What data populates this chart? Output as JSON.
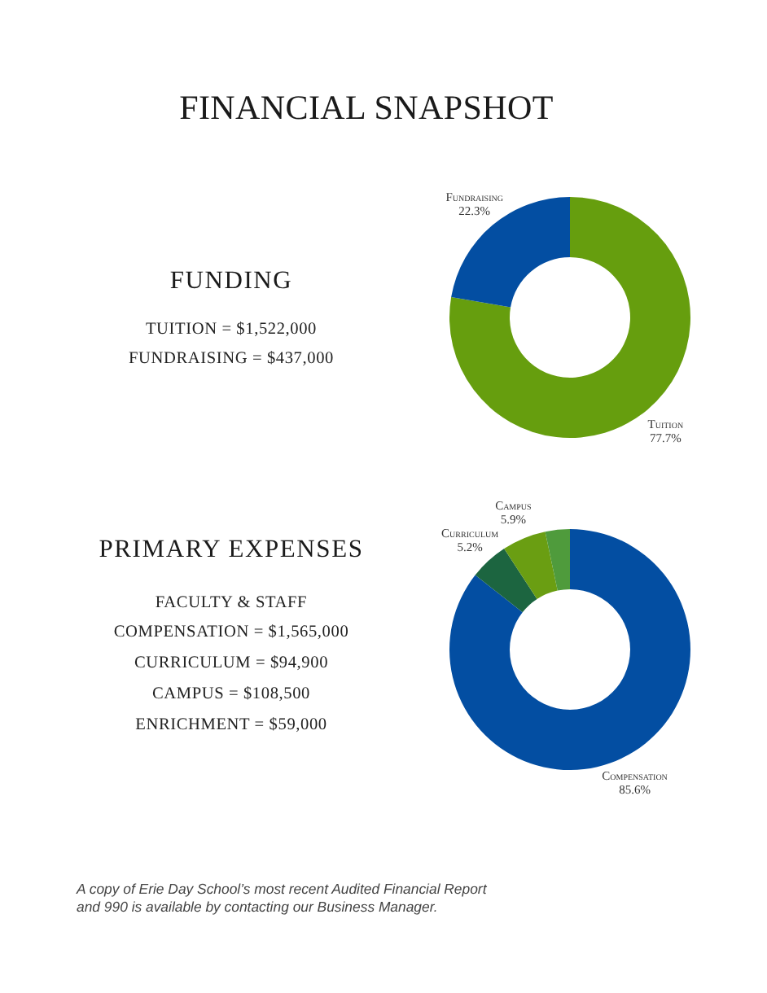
{
  "chart_data": [
    {
      "type": "other",
      "title": "FINANCIAL SNAPSHOT"
    },
    {
      "type": "other",
      "title": "FUNDING",
      "annotations": [
        "TUITION = $1,522,000",
        "FUNDRAISING = $437,000"
      ]
    },
    {
      "type": "donut",
      "categories": [
        "Tuition",
        "Fundraising"
      ],
      "values": [
        77.7,
        22.3
      ],
      "colors": [
        "#669e0e",
        "#034ea2"
      ],
      "value_labels": [
        "77.7%",
        "22.3%"
      ]
    },
    {
      "type": "other",
      "title": "PRIMARY EXPENSES",
      "annotations": [
        "FACULTY & STAFF COMPENSATION = $1,565,000",
        "CURRICULUM = $94,900",
        "CAMPUS = $108,500",
        "ENRICHMENT = $59,000"
      ]
    },
    {
      "type": "donut",
      "categories": [
        "Compensation",
        "Curriculum",
        "Campus",
        null
      ],
      "values": [
        85.6,
        5.2,
        5.9,
        3.3
      ],
      "colors": [
        "#034ea2",
        "#1c6540",
        "#6a9e12",
        "#4f9b3c"
      ],
      "value_labels": [
        "85.6%",
        "5.2%",
        "5.9%",
        null
      ]
    },
    {
      "type": "other",
      "annotations": [
        "A copy of Erie Day School’s most recent Audited Financial Report and 990 is available by contacting our Business Manager."
      ]
    }
  ]
}
